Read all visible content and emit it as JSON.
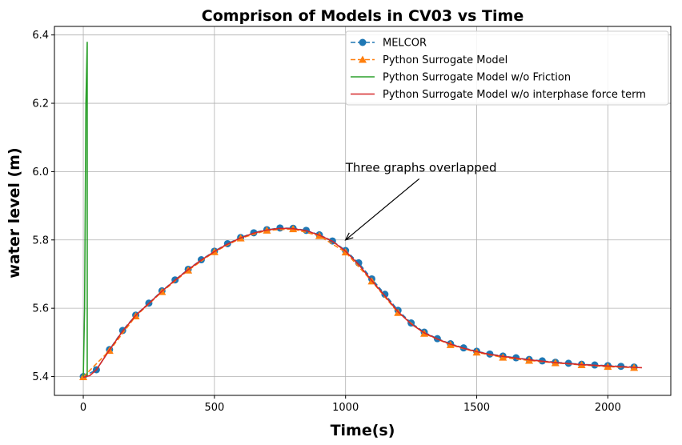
{
  "chart_data": {
    "type": "line",
    "title": "Comprison of Models in CV03 vs Time",
    "xlabel": "Time(s)",
    "ylabel": "water level (m)",
    "xlim": [
      -110,
      2240
    ],
    "ylim": [
      5.345,
      6.425
    ],
    "xticks": [
      0,
      500,
      1000,
      1500,
      2000
    ],
    "yticks": [
      5.4,
      5.6,
      5.8,
      6.0,
      6.2,
      6.4
    ],
    "xtick_labels": [
      "0",
      "500",
      "1000",
      "1500",
      "2000"
    ],
    "ytick_labels": [
      "5.4",
      "5.6",
      "5.8",
      "6.0",
      "6.2",
      "6.4"
    ],
    "grid": true,
    "legend_position": "top-right",
    "series": [
      {
        "name": "MELCOR",
        "style": "dashed-circle",
        "color": "#1f77b4",
        "x": [
          0,
          50,
          100,
          150,
          200,
          250,
          300,
          350,
          400,
          450,
          500,
          550,
          600,
          650,
          700,
          750,
          800,
          850,
          900,
          950,
          1000,
          1050,
          1100,
          1150,
          1200,
          1250,
          1300,
          1350,
          1400,
          1450,
          1500,
          1550,
          1600,
          1650,
          1700,
          1750,
          1800,
          1850,
          1900,
          1950,
          2000,
          2050,
          2100
        ],
        "y": [
          5.4,
          5.42,
          5.479,
          5.535,
          5.58,
          5.615,
          5.651,
          5.683,
          5.714,
          5.742,
          5.767,
          5.789,
          5.807,
          5.821,
          5.83,
          5.835,
          5.834,
          5.828,
          5.815,
          5.797,
          5.769,
          5.733,
          5.686,
          5.641,
          5.594,
          5.557,
          5.53,
          5.511,
          5.496,
          5.484,
          5.474,
          5.466,
          5.46,
          5.455,
          5.45,
          5.446,
          5.442,
          5.439,
          5.436,
          5.434,
          5.432,
          5.43,
          5.428
        ]
      },
      {
        "name": "Python Surrogate Model",
        "style": "dashed-triangle",
        "color": "#ff7f0e",
        "x": [
          0,
          100,
          200,
          300,
          400,
          500,
          600,
          700,
          800,
          900,
          1000,
          1100,
          1200,
          1300,
          1400,
          1500,
          1600,
          1700,
          1800,
          1900,
          2000,
          2100
        ],
        "y": [
          5.399,
          5.476,
          5.577,
          5.648,
          5.711,
          5.765,
          5.805,
          5.828,
          5.832,
          5.812,
          5.764,
          5.679,
          5.587,
          5.526,
          5.493,
          5.471,
          5.456,
          5.447,
          5.44,
          5.434,
          5.429,
          5.426
        ]
      },
      {
        "name": "Python Surrogate Model w/o Friction",
        "style": "solid",
        "color": "#2ca02c",
        "x": [
          0,
          5,
          10,
          15,
          15
        ],
        "y": [
          5.4,
          5.6,
          6.2,
          6.38,
          5.4
        ]
      },
      {
        "name": "Python Surrogate Model w/o interphase force term",
        "style": "solid",
        "color": "#d62728",
        "x": [
          0,
          25,
          50,
          100,
          150,
          200,
          250,
          300,
          350,
          400,
          450,
          500,
          550,
          600,
          650,
          700,
          750,
          800,
          850,
          900,
          950,
          1000,
          1050,
          1100,
          1150,
          1200,
          1250,
          1300,
          1350,
          1400,
          1450,
          1500,
          1550,
          1600,
          1650,
          1700,
          1750,
          1800,
          1850,
          1900,
          1950,
          2000,
          2050,
          2100,
          2130
        ],
        "y": [
          5.398,
          5.403,
          5.42,
          5.478,
          5.533,
          5.579,
          5.614,
          5.65,
          5.682,
          5.713,
          5.741,
          5.766,
          5.788,
          5.806,
          5.82,
          5.829,
          5.834,
          5.833,
          5.827,
          5.814,
          5.796,
          5.767,
          5.728,
          5.681,
          5.636,
          5.59,
          5.554,
          5.528,
          5.51,
          5.495,
          5.483,
          5.473,
          5.465,
          5.459,
          5.454,
          5.449,
          5.445,
          5.441,
          5.438,
          5.435,
          5.433,
          5.431,
          5.429,
          5.427,
          5.426
        ]
      }
    ],
    "annotation": {
      "text": "Three graphs overlapped",
      "text_at": [
        1000,
        6.0
      ],
      "arrow_to": [
        1000,
        5.8
      ]
    }
  }
}
